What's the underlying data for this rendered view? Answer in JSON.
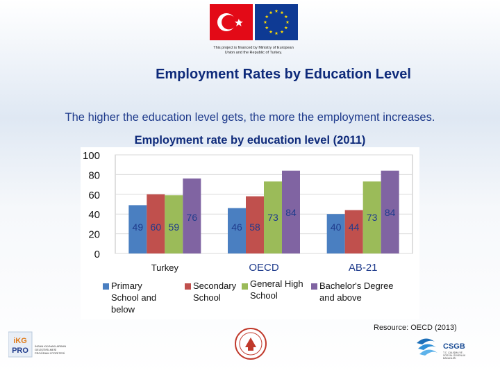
{
  "header": {
    "funding_note_line1": "This project is financed by Ministry of European",
    "funding_note_line2": "Union and  the Republic of Turkey."
  },
  "slide": {
    "title": "Employment Rates by Education Level",
    "subtitle": "The higher the education level gets, the more the employment increases.",
    "resource": "Resource: OECD (2013)"
  },
  "chart_data": {
    "type": "bar",
    "title": "Employment rate by education level (2011)",
    "categories": [
      "Turkey",
      "OECD",
      "AB-21"
    ],
    "series": [
      {
        "name": "Primary School  and below",
        "legend_lines": [
          "Primary",
          "School  and",
          "below"
        ],
        "values": [
          49,
          46,
          40
        ],
        "color": "#4a7fc1"
      },
      {
        "name": "Secondary School",
        "legend_lines": [
          "Secondary",
          "School"
        ],
        "values": [
          60,
          58,
          44
        ],
        "color": "#c0504d"
      },
      {
        "name": "General High School",
        "legend_lines": [
          "General High",
          "School"
        ],
        "values": [
          59,
          73,
          73
        ],
        "color": "#9bbb59"
      },
      {
        "name": "Bachelor's Degree and above",
        "legend_lines": [
          "Bachelor's Degree",
          "and above"
        ],
        "values": [
          76,
          84,
          84
        ],
        "color": "#8064a2"
      }
    ],
    "yticks": [
      0,
      20,
      40,
      60,
      80,
      100
    ],
    "ylim": [
      0,
      100
    ],
    "grid": true,
    "legend_position": "bottom",
    "label_color": "#1f3b8c"
  },
  "logos": {
    "left": {
      "icon": "ikg-pro-logo",
      "text_top": "iKG",
      "text_bottom": "PRO",
      "caption_lines": [
        "İNSAN KAYNAKLARININ",
        "GELİŞTİRİLMESİ",
        "PROGRAM OTORİTESİ"
      ]
    },
    "middle": {
      "icon": "ministry-of-education-seal"
    },
    "right": {
      "icon": "csgb-logo",
      "text": "CSGB",
      "caption_lines": [
        "T.C. ÇALIŞMA VE",
        "SOSYAL GÜVENLİK",
        "BAKANLIĞI"
      ]
    }
  },
  "colors": {
    "title": "#0e2a7a",
    "text": "#1f3b8c",
    "turkey_red": "#e30a17",
    "eu_blue": "#0e3a94",
    "eu_star": "#ffdd00"
  }
}
